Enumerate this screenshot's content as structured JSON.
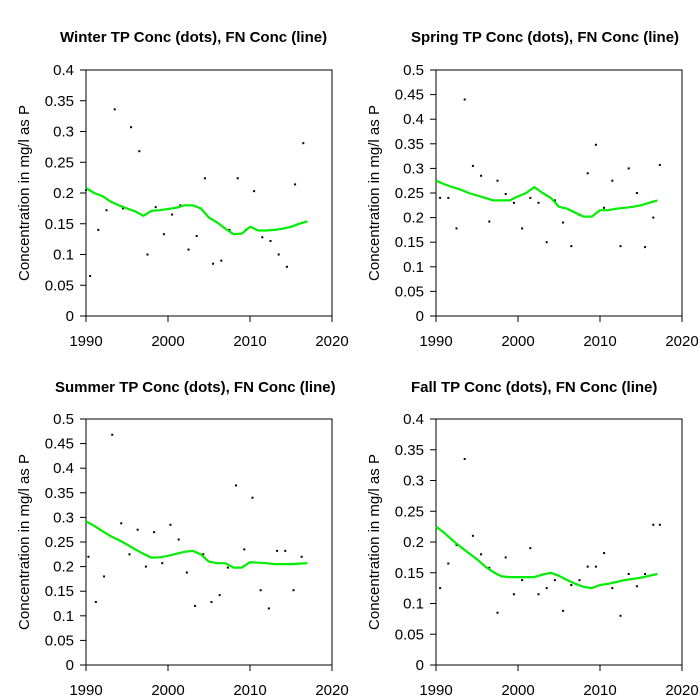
{
  "colors": {
    "trend_line": "#00ee00",
    "points": "#000000",
    "axes": "#000000",
    "background": "#ffffff"
  },
  "chart_data": [
    {
      "type": "scatter",
      "title": "Winter TP Conc (dots), FN Conc (line)",
      "xlabel": "",
      "ylabel": "Concentration in mg/l as P",
      "xlim": [
        1990,
        2020
      ],
      "ylim": [
        0,
        0.4
      ],
      "xticks": [
        "1990",
        "2000",
        "2010",
        "2020"
      ],
      "yticks": [
        "0",
        "0.05",
        "0.1",
        "0.15",
        "0.2",
        "0.25",
        "0.3",
        "0.35",
        "0.4"
      ],
      "grid": false,
      "points": {
        "x": [
          1990,
          1990.5,
          1991.5,
          1992.5,
          1993.5,
          1994.5,
          1995.5,
          1996.5,
          1997.5,
          1998.5,
          1999.5,
          2000.5,
          2001.5,
          2002.5,
          2003.5,
          2004.5,
          2005.5,
          2006.5,
          2007.5,
          2008.5,
          2009.5,
          2010.5,
          2011.5,
          2012.5,
          2013.5,
          2014.5,
          2015.5,
          2016.5
        ],
        "y": [
          0.205,
          0.065,
          0.14,
          0.172,
          0.336,
          0.175,
          0.307,
          0.268,
          0.1,
          0.177,
          0.133,
          0.165,
          0.18,
          0.108,
          0.13,
          0.224,
          0.085,
          0.09,
          0.14,
          0.224,
          0.14,
          0.203,
          0.128,
          0.122,
          0.1,
          0.08,
          0.214,
          0.281
        ]
      },
      "line": {
        "x": [
          1990,
          1991,
          1992,
          1993,
          1994,
          1995,
          1996,
          1997,
          1998,
          1999,
          2000,
          2001,
          2002,
          2003,
          2004,
          2005,
          2006,
          2007,
          2008,
          2009,
          2010,
          2011,
          2012,
          2013,
          2014,
          2015,
          2016,
          2017
        ],
        "y": [
          0.208,
          0.2,
          0.195,
          0.186,
          0.18,
          0.175,
          0.17,
          0.163,
          0.171,
          0.172,
          0.174,
          0.176,
          0.18,
          0.18,
          0.175,
          0.16,
          0.152,
          0.142,
          0.133,
          0.134,
          0.145,
          0.139,
          0.139,
          0.14,
          0.142,
          0.145,
          0.15,
          0.154
        ]
      }
    },
    {
      "type": "scatter",
      "title": "Spring TP Conc (dots), FN Conc (line)",
      "xlabel": "",
      "ylabel": "Concentration in mg/l as P",
      "xlim": [
        1990,
        2020
      ],
      "ylim": [
        0,
        0.5
      ],
      "xticks": [
        "1990",
        "2000",
        "2010",
        "2020"
      ],
      "yticks": [
        "0",
        "0.05",
        "0.1",
        "0.15",
        "0.2",
        "0.25",
        "0.3",
        "0.35",
        "0.4",
        "0.45",
        "0.5"
      ],
      "grid": false,
      "points": {
        "x": [
          1990.5,
          1991.5,
          1992.5,
          1993.5,
          1994.5,
          1995.5,
          1996.5,
          1997.5,
          1998.5,
          1999.5,
          2000.5,
          2001.5,
          2002.5,
          2003.5,
          2004.5,
          2005.5,
          2006.5,
          2007.5,
          2008.5,
          2009.5,
          2010.5,
          2011.5,
          2012.5,
          2013.5,
          2014.5,
          2015.5,
          2016.5,
          2017.3
        ],
        "y": [
          0.24,
          0.24,
          0.178,
          0.44,
          0.305,
          0.285,
          0.192,
          0.275,
          0.248,
          0.23,
          0.178,
          0.24,
          0.23,
          0.15,
          0.235,
          0.19,
          0.142,
          0.205,
          0.29,
          0.348,
          0.22,
          0.275,
          0.142,
          0.3,
          0.25,
          0.14,
          0.2,
          0.307
        ]
      },
      "line": {
        "x": [
          1990,
          1991,
          1992,
          1993,
          1994,
          1995,
          1996,
          1997,
          1998,
          1999,
          2000,
          2001,
          2002,
          2003,
          2004,
          2005,
          2006,
          2007,
          2008,
          2009,
          2010,
          2011,
          2012,
          2013,
          2014,
          2015,
          2016,
          2017
        ],
        "y": [
          0.275,
          0.268,
          0.262,
          0.257,
          0.25,
          0.245,
          0.24,
          0.235,
          0.235,
          0.235,
          0.243,
          0.25,
          0.262,
          0.25,
          0.24,
          0.222,
          0.218,
          0.21,
          0.202,
          0.202,
          0.215,
          0.215,
          0.218,
          0.22,
          0.222,
          0.225,
          0.23,
          0.235
        ]
      }
    },
    {
      "type": "scatter",
      "title": "Summer TP Conc (dots), FN Conc (line)",
      "xlabel": "",
      "ylabel": "Concentration in mg/l as P",
      "xlim": [
        1990,
        2020
      ],
      "ylim": [
        0,
        0.5
      ],
      "xticks": [
        "1990",
        "2000",
        "2010",
        "2020"
      ],
      "yticks": [
        "0",
        "0.05",
        "0.1",
        "0.15",
        "0.2",
        "0.25",
        "0.3",
        "0.35",
        "0.4",
        "0.45",
        "0.5"
      ],
      "grid": false,
      "points": {
        "x": [
          1990.3,
          1991.2,
          1992.2,
          1993.2,
          1994.3,
          1995.3,
          1996.3,
          1997.3,
          1998.3,
          1999.3,
          2000.3,
          2001.3,
          2002.3,
          2003.3,
          2004.3,
          2005.3,
          2006.3,
          2007.3,
          2008.3,
          2009.3,
          2010.3,
          2011.3,
          2012.3,
          2013.3,
          2014.3,
          2015.3,
          2016.3
        ],
        "y": [
          0.22,
          0.128,
          0.18,
          0.468,
          0.288,
          0.225,
          0.275,
          0.2,
          0.27,
          0.207,
          0.285,
          0.255,
          0.188,
          0.12,
          0.225,
          0.128,
          0.142,
          0.198,
          0.365,
          0.235,
          0.34,
          0.152,
          0.115,
          0.232,
          0.232,
          0.152,
          0.22
        ]
      },
      "line": {
        "x": [
          1990,
          1991,
          1992,
          1993,
          1994,
          1995,
          1996,
          1997,
          1998,
          1999,
          2000,
          2001,
          2002,
          2003,
          2004,
          2005,
          2006,
          2007,
          2008,
          2009,
          2010,
          2011,
          2012,
          2013,
          2014,
          2015,
          2016,
          2017
        ],
        "y": [
          0.292,
          0.283,
          0.272,
          0.262,
          0.254,
          0.245,
          0.235,
          0.226,
          0.218,
          0.219,
          0.222,
          0.226,
          0.23,
          0.232,
          0.225,
          0.21,
          0.207,
          0.207,
          0.198,
          0.198,
          0.209,
          0.208,
          0.207,
          0.205,
          0.205,
          0.205,
          0.206,
          0.207
        ]
      }
    },
    {
      "type": "scatter",
      "title": "Fall TP Conc (dots), FN Conc (line)",
      "xlabel": "",
      "ylabel": "Concentration in mg/l as P",
      "xlim": [
        1990,
        2020
      ],
      "ylim": [
        0,
        0.4
      ],
      "xticks": [
        "1990",
        "2000",
        "2010",
        "2020"
      ],
      "yticks": [
        "0",
        "0.05",
        "0.1",
        "0.15",
        "0.2",
        "0.25",
        "0.3",
        "0.35",
        "0.4"
      ],
      "grid": false,
      "points": {
        "x": [
          1990.5,
          1991.5,
          1992.5,
          1993.5,
          1994.5,
          1995.5,
          1996.5,
          1997.5,
          1998.5,
          1999.5,
          2000.5,
          2001.5,
          2002.5,
          2003.5,
          2004.5,
          2005.5,
          2006.5,
          2007.5,
          2008.5,
          2009.5,
          2010.5,
          2011.5,
          2012.5,
          2013.5,
          2014.5,
          2015.5,
          2016.5,
          2017.3
        ],
        "y": [
          0.125,
          0.165,
          0.195,
          0.335,
          0.21,
          0.18,
          0.158,
          0.085,
          0.175,
          0.115,
          0.138,
          0.19,
          0.115,
          0.125,
          0.138,
          0.088,
          0.13,
          0.138,
          0.16,
          0.16,
          0.182,
          0.125,
          0.08,
          0.148,
          0.128,
          0.148,
          0.228,
          0.228
        ]
      },
      "line": {
        "x": [
          1990,
          1991,
          1992,
          1993,
          1994,
          1995,
          1996,
          1997,
          1998,
          1999,
          2000,
          2001,
          2002,
          2003,
          2004,
          2005,
          2006,
          2007,
          2008,
          2009,
          2010,
          2011,
          2012,
          2013,
          2014,
          2015,
          2016,
          2017
        ],
        "y": [
          0.225,
          0.215,
          0.203,
          0.192,
          0.182,
          0.172,
          0.16,
          0.151,
          0.144,
          0.143,
          0.143,
          0.143,
          0.143,
          0.147,
          0.15,
          0.145,
          0.138,
          0.132,
          0.127,
          0.125,
          0.13,
          0.132,
          0.135,
          0.138,
          0.14,
          0.142,
          0.145,
          0.148
        ]
      }
    }
  ]
}
